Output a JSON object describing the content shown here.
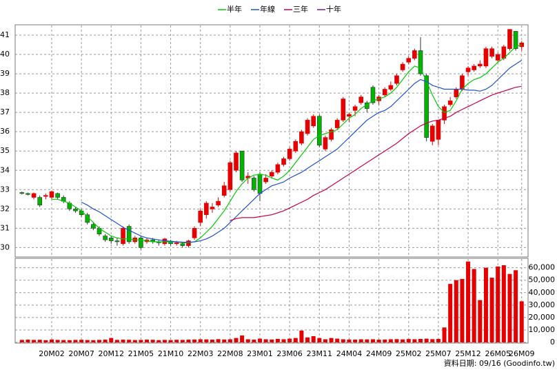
{
  "chart_data": {
    "type": "candlestick",
    "categories": [
      null,
      null,
      null,
      null,
      null,
      "20M02",
      null,
      null,
      null,
      null,
      "20M07",
      null,
      null,
      null,
      null,
      "20M12",
      null,
      null,
      null,
      null,
      "21M05",
      null,
      null,
      null,
      null,
      "21M10",
      null,
      null,
      null,
      null,
      "22M03",
      null,
      null,
      null,
      null,
      "22M08",
      null,
      null,
      null,
      null,
      "23M01",
      null,
      null,
      null,
      null,
      "23M06",
      null,
      null,
      null,
      null,
      "23M11",
      null,
      null,
      null,
      null,
      "24M04",
      null,
      null,
      null,
      null,
      "24M09",
      null,
      null,
      null,
      null,
      "25M02",
      null,
      null,
      null,
      null,
      "25M07",
      null,
      null,
      null,
      null,
      "25M12",
      null,
      null,
      null,
      null,
      "26M05",
      null,
      null,
      null,
      "26M09"
    ],
    "open": [
      32.85,
      32.8,
      32.6,
      32.6,
      32.65,
      32.6,
      32.8,
      32.6,
      32.3,
      32.0,
      31.9,
      31.7,
      31.2,
      31.0,
      30.6,
      30.5,
      30.35,
      30.2,
      31.1,
      30.3,
      30.5,
      30.3,
      30.4,
      30.3,
      30.2,
      30.3,
      30.2,
      30.2,
      30.1,
      30.5,
      31.3,
      31.7,
      32.0,
      32.2,
      32.7,
      33.0,
      34.0,
      35.0,
      33.6,
      33.6,
      33.8,
      33.4,
      33.7,
      33.9,
      34.3,
      34.6,
      35.0,
      35.4,
      35.9,
      36.3,
      36.8,
      35.1,
      35.6,
      36.2,
      36.6,
      36.8,
      37.1,
      37.5,
      37.5,
      38.3,
      37.6,
      37.9,
      38.2,
      38.5,
      39.2,
      39.6,
      39.8,
      40.2,
      38.9,
      35.5,
      35.6,
      36.6,
      37.4,
      37.8,
      38.2,
      39.1,
      39.2,
      39.4,
      39.4,
      39.9,
      39.7,
      39.8,
      40.3,
      41.2,
      40.4
    ],
    "high": [
      32.9,
      32.85,
      32.85,
      32.7,
      32.8,
      32.95,
      32.85,
      32.7,
      32.4,
      32.1,
      32.0,
      31.8,
      31.3,
      31.1,
      30.7,
      30.6,
      30.5,
      31.1,
      31.2,
      30.6,
      30.6,
      30.5,
      30.5,
      30.4,
      30.5,
      30.4,
      30.35,
      30.3,
      30.4,
      31.1,
      32.0,
      32.4,
      32.3,
      32.6,
      33.4,
      34.5,
      35.0,
      35.0,
      33.9,
      33.7,
      33.9,
      33.8,
      34.0,
      34.4,
      34.7,
      35.2,
      35.6,
      36.1,
      36.7,
      36.9,
      36.9,
      35.8,
      36.2,
      36.7,
      37.8,
      37.0,
      37.4,
      37.9,
      37.6,
      38.4,
      37.9,
      38.3,
      38.6,
      39.0,
      39.6,
      39.9,
      40.3,
      40.9,
      39.0,
      36.4,
      36.6,
      37.4,
      37.8,
      38.3,
      39.0,
      39.4,
      39.5,
      39.7,
      40.4,
      40.4,
      40.1,
      40.5,
      41.3,
      41.2,
      40.7
    ],
    "low": [
      32.75,
      32.7,
      32.5,
      32.1,
      32.5,
      32.5,
      32.5,
      32.3,
      31.9,
      31.8,
      31.6,
      31.2,
      30.9,
      30.6,
      30.3,
      30.2,
      30.1,
      30.1,
      30.2,
      30.2,
      29.9,
      30.2,
      30.2,
      30.1,
      30.1,
      30.1,
      30.1,
      30.0,
      30.0,
      30.4,
      31.1,
      31.5,
      31.8,
      32.1,
      32.6,
      32.9,
      33.9,
      33.4,
      33.3,
      32.9,
      32.4,
      33.3,
      33.6,
      33.8,
      34.2,
      34.5,
      34.9,
      35.3,
      35.8,
      36.2,
      35.2,
      35.0,
      35.5,
      36.1,
      36.5,
      36.5,
      36.8,
      37.4,
      37.0,
      37.4,
      37.4,
      37.8,
      38.1,
      38.4,
      39.1,
      39.5,
      39.7,
      38.9,
      35.5,
      35.3,
      35.3,
      36.4,
      37.3,
      37.7,
      38.1,
      38.9,
      39.1,
      39.3,
      39.3,
      39.8,
      39.6,
      39.7,
      40.2,
      40.2,
      40.2
    ],
    "close": [
      32.8,
      32.75,
      32.8,
      32.2,
      32.7,
      32.9,
      32.6,
      32.4,
      32.0,
      31.9,
      31.7,
      31.3,
      31.0,
      30.7,
      30.4,
      30.35,
      30.3,
      31.0,
      30.3,
      30.5,
      30.0,
      30.4,
      30.3,
      30.25,
      30.45,
      30.2,
      30.25,
      30.1,
      30.35,
      31.0,
      31.9,
      32.3,
      32.1,
      32.4,
      33.2,
      34.4,
      34.9,
      33.5,
      33.7,
      33.0,
      32.8,
      33.6,
      33.9,
      34.3,
      34.6,
      35.1,
      35.5,
      36.0,
      36.6,
      36.8,
      35.3,
      35.7,
      36.1,
      36.6,
      37.7,
      36.9,
      37.3,
      37.8,
      37.2,
      37.5,
      37.8,
      38.2,
      38.4,
      38.9,
      39.5,
      39.8,
      40.2,
      39.0,
      35.7,
      36.3,
      36.6,
      37.3,
      37.6,
      38.2,
      38.9,
      39.3,
      39.4,
      39.5,
      40.3,
      40.3,
      40.0,
      40.4,
      41.3,
      40.3,
      40.6
    ],
    "up_color": "#e60000",
    "down_color": "#00b400",
    "series": [
      {
        "name": "半年",
        "color": "#00cc00",
        "values": [
          null,
          null,
          null,
          null,
          null,
          32.5,
          32.5,
          32.4,
          32.3,
          32.1,
          31.9,
          31.6,
          31.3,
          31.0,
          30.8,
          30.6,
          30.5,
          30.45,
          30.45,
          30.4,
          30.4,
          30.35,
          30.3,
          30.3,
          30.3,
          30.3,
          30.3,
          30.25,
          30.25,
          30.3,
          30.5,
          30.8,
          31.1,
          31.5,
          31.9,
          32.4,
          32.9,
          33.3,
          33.6,
          33.75,
          33.8,
          33.75,
          33.6,
          33.5,
          33.7,
          34.0,
          34.4,
          34.8,
          35.2,
          35.6,
          35.8,
          35.9,
          36.0,
          36.1,
          36.4,
          36.7,
          36.9,
          37.2,
          37.4,
          37.6,
          37.7,
          37.8,
          38.0,
          38.3,
          38.7,
          39.1,
          39.4,
          39.3,
          38.6,
          37.9,
          37.3,
          37.0,
          37.1,
          37.6,
          38.2,
          38.5,
          38.7,
          38.8,
          39.0,
          39.3,
          39.6,
          39.8,
          40.1,
          40.4,
          40.5
        ]
      },
      {
        "name": "年線",
        "color": "#1f4fd6",
        "values": [
          null,
          null,
          null,
          null,
          null,
          null,
          null,
          null,
          null,
          null,
          32.35,
          32.2,
          32.0,
          31.85,
          31.65,
          31.45,
          31.25,
          31.05,
          30.9,
          30.75,
          30.6,
          30.5,
          30.45,
          30.4,
          30.35,
          30.33,
          30.3,
          30.28,
          30.27,
          30.3,
          30.35,
          30.45,
          30.6,
          30.8,
          31.0,
          31.3,
          31.6,
          31.9,
          32.2,
          32.5,
          32.8,
          33.0,
          33.2,
          33.3,
          33.4,
          33.6,
          33.75,
          33.9,
          34.1,
          34.3,
          34.5,
          34.7,
          34.9,
          35.1,
          35.4,
          35.7,
          36.0,
          36.3,
          36.6,
          36.8,
          37.0,
          37.1,
          37.3,
          37.6,
          37.9,
          38.2,
          38.5,
          38.7,
          38.6,
          38.4,
          38.3,
          38.2,
          38.2,
          38.2,
          38.2,
          38.15,
          38.15,
          38.1,
          38.2,
          38.4,
          38.7,
          39.0,
          39.3,
          39.5,
          39.7
        ]
      },
      {
        "name": "三年",
        "color": "#cc0044",
        "values": [
          null,
          null,
          null,
          null,
          null,
          null,
          null,
          null,
          null,
          null,
          null,
          null,
          null,
          null,
          null,
          null,
          null,
          null,
          null,
          null,
          null,
          null,
          null,
          null,
          null,
          null,
          null,
          null,
          null,
          null,
          null,
          null,
          null,
          null,
          null,
          31.4,
          31.5,
          31.55,
          31.55,
          31.55,
          31.6,
          31.65,
          31.7,
          31.8,
          31.9,
          32.05,
          32.2,
          32.35,
          32.5,
          32.7,
          32.85,
          33.0,
          33.2,
          33.4,
          33.6,
          33.8,
          34.0,
          34.2,
          34.4,
          34.6,
          34.8,
          35.0,
          35.2,
          35.4,
          35.65,
          35.9,
          36.1,
          36.3,
          36.45,
          36.55,
          36.6,
          36.7,
          36.8,
          37.0,
          37.15,
          37.3,
          37.45,
          37.6,
          37.75,
          37.9,
          38.0,
          38.1,
          38.2,
          38.3,
          38.35
        ]
      },
      {
        "name": "十年",
        "color": "#6a1b9a"
      }
    ],
    "ylim": [
      29.55,
      41.5
    ],
    "yticks": [
      30,
      31,
      32,
      33,
      34,
      35,
      36,
      37,
      38,
      39,
      40,
      41
    ],
    "grid": true,
    "legend": "top",
    "volume": {
      "color": "#e60000",
      "values": [
        2000,
        2200,
        2000,
        2100,
        1800,
        2300,
        2000,
        1900,
        1800,
        2000,
        2100,
        1900,
        1800,
        2000,
        2200,
        3500,
        2000,
        2200,
        2100,
        1900,
        2000,
        2200,
        2100,
        1800,
        2000,
        1900,
        2100,
        2000,
        2200,
        2300,
        2500,
        2400,
        2200,
        2600,
        2300,
        2500,
        3500,
        5500,
        2500,
        2200,
        3000,
        2500,
        2300,
        2800,
        2500,
        3000,
        3500,
        9500,
        4000,
        5000,
        3500,
        2500,
        3500,
        3000,
        2500,
        2300,
        2200,
        2500,
        2400,
        2500,
        2200,
        2300,
        2500,
        2600,
        2400,
        2700,
        2500,
        2800,
        3000,
        2600,
        2800,
        12000,
        47000,
        50000,
        51000,
        65000,
        59000,
        34000,
        60000,
        52000,
        61000,
        62000,
        55000,
        58000,
        33000
      ],
      "ylim": [
        0,
        67000
      ],
      "yticks": [
        0,
        {
          "value": 10000,
          "label": "10,000"
        },
        {
          "value": 20000,
          "label": "20,000"
        },
        {
          "value": 30000,
          "label": "30,000"
        },
        {
          "value": 40000,
          "label": "40,000"
        },
        {
          "value": 50000,
          "label": "50,000"
        },
        {
          "value": 60000,
          "label": "60,000"
        }
      ]
    },
    "source": "資料日期: 09/16 (Goodinfo.tw)"
  }
}
